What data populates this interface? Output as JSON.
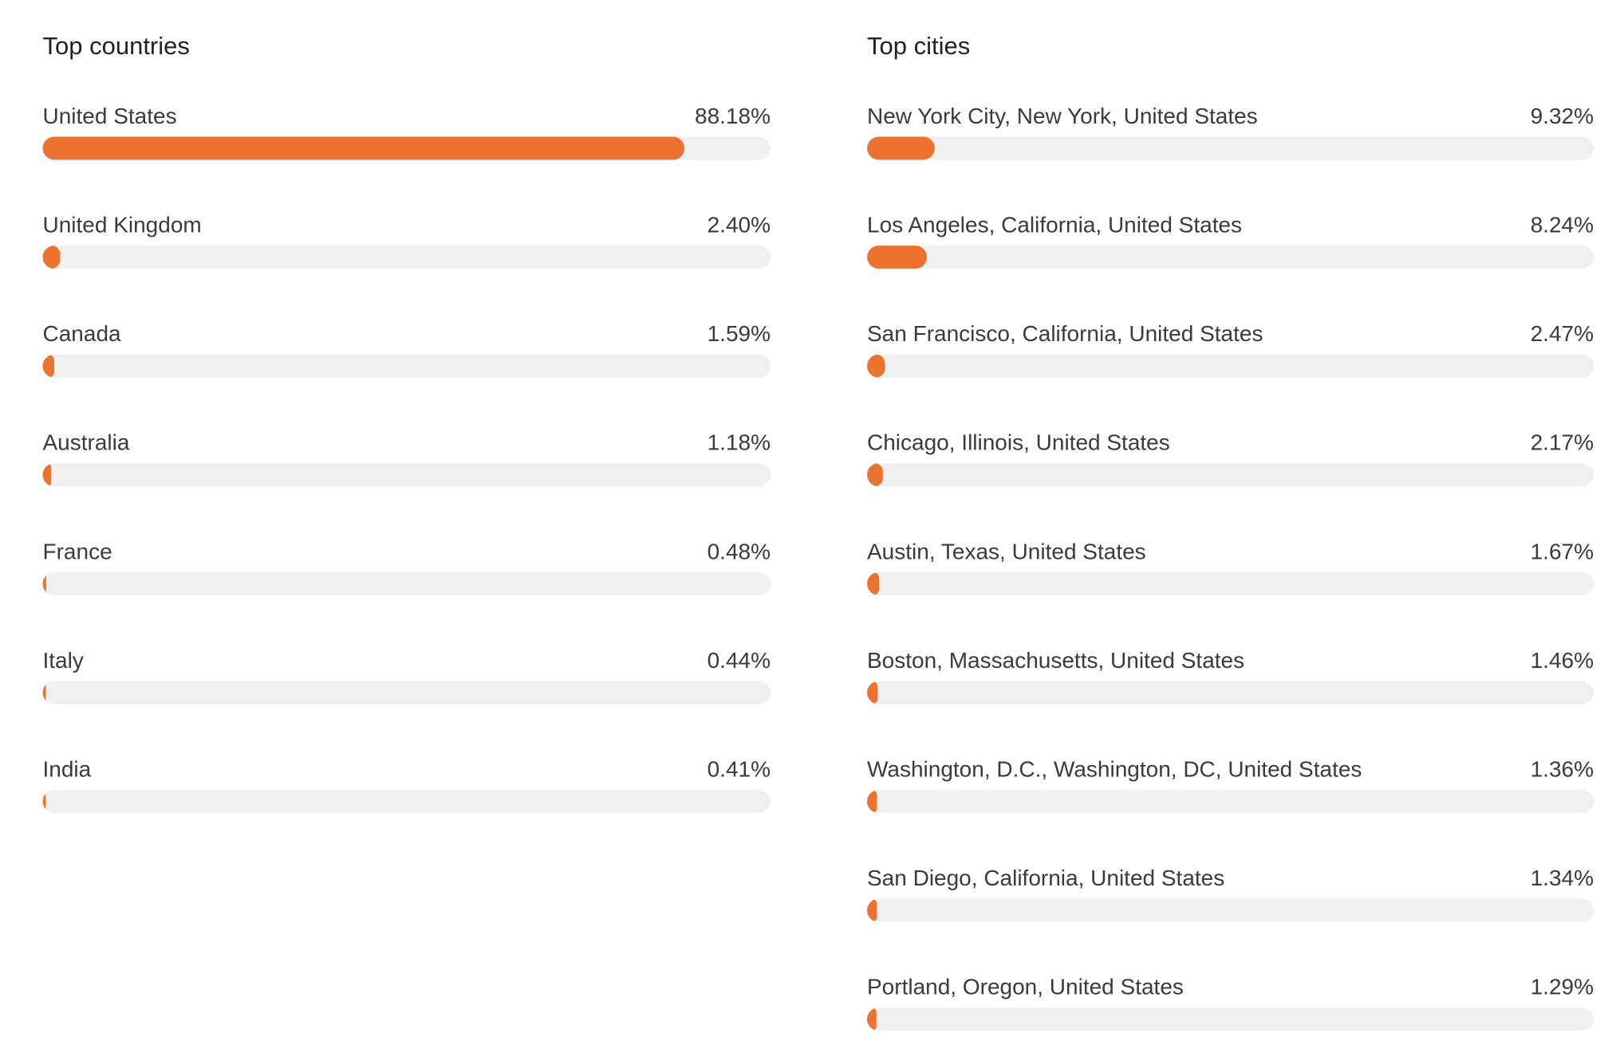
{
  "chart_data": [
    {
      "type": "bar",
      "title": "Top countries",
      "categories": [
        "United States",
        "United Kingdom",
        "Canada",
        "Australia",
        "France",
        "Italy",
        "India"
      ],
      "values": [
        88.18,
        2.4,
        1.59,
        1.18,
        0.48,
        0.44,
        0.41
      ],
      "value_labels": [
        "88.18%",
        "2.40%",
        "1.59%",
        "1.18%",
        "0.48%",
        "0.44%",
        "0.41%"
      ],
      "color": "#ed7230",
      "xlim": [
        0,
        100
      ]
    },
    {
      "type": "bar",
      "title": "Top cities",
      "categories": [
        "New York City, New York, United States",
        "Los Angeles, California, United States",
        "San Francisco, California, United States",
        "Chicago, Illinois, United States",
        "Austin, Texas, United States",
        "Boston, Massachusetts, United States",
        "Washington, D.C., Washington, DC, United States",
        "San Diego, California, United States",
        "Portland, Oregon, United States"
      ],
      "values": [
        9.32,
        8.24,
        2.47,
        2.17,
        1.67,
        1.46,
        1.36,
        1.34,
        1.29
      ],
      "value_labels": [
        "9.32%",
        "8.24%",
        "2.47%",
        "2.17%",
        "1.67%",
        "1.46%",
        "1.36%",
        "1.34%",
        "1.29%"
      ],
      "color": "#ed7230",
      "xlim": [
        0,
        100
      ]
    }
  ]
}
